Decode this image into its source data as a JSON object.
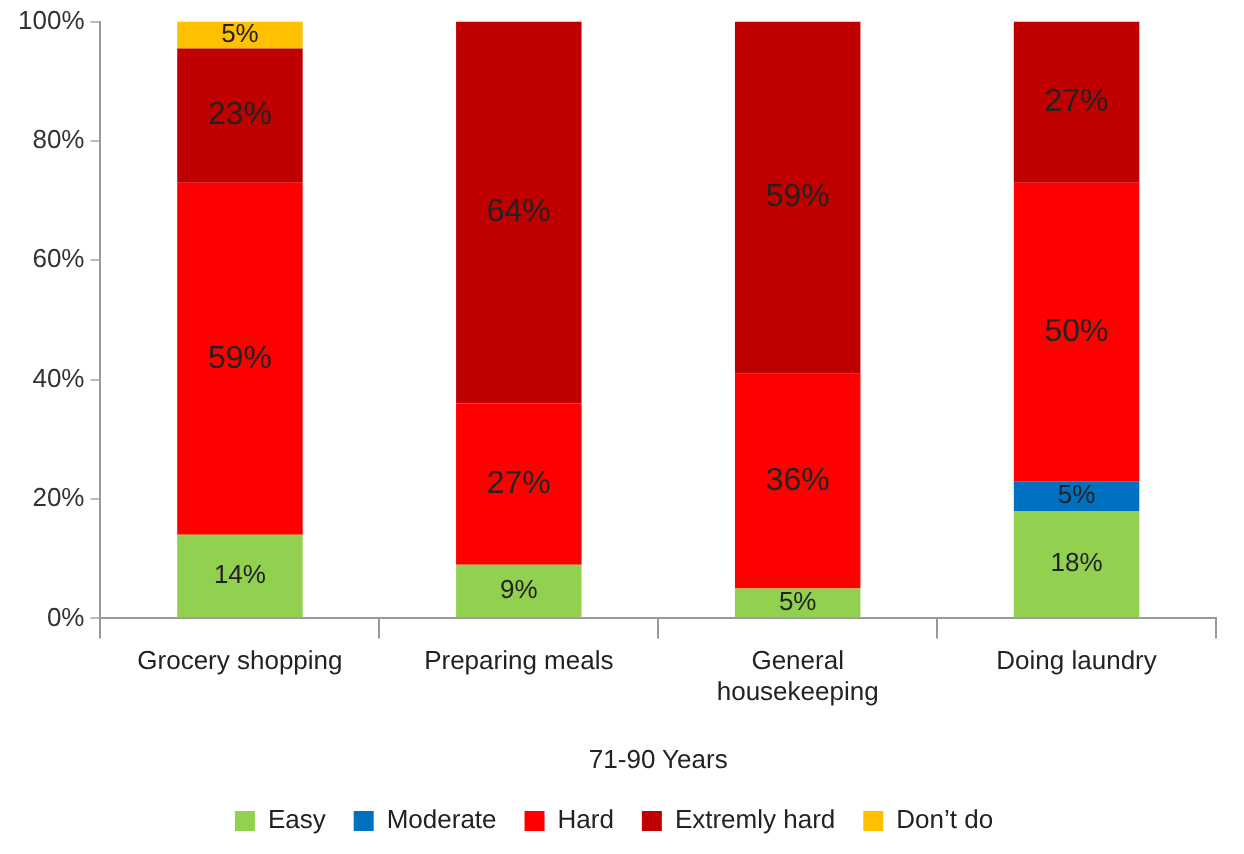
{
  "chart_data": {
    "type": "bar",
    "stacked": true,
    "xlabel": "71-90 Years",
    "categories": [
      "Grocery shopping",
      "Preparing meals",
      "General housekeeping",
      "Doing laundry"
    ],
    "series": [
      {
        "name": "Easy",
        "color": "#92d050",
        "values": [
          14,
          9,
          5,
          18
        ],
        "value_labels": [
          "14%",
          "9%",
          "5%",
          "18%"
        ]
      },
      {
        "name": "Moderate",
        "color": "#0070c0",
        "values": [
          null,
          null,
          null,
          5
        ],
        "value_labels": [
          null,
          null,
          null,
          "5%"
        ]
      },
      {
        "name": "Hard",
        "color": "#ff0000",
        "values": [
          59,
          27,
          36,
          50
        ],
        "value_labels": [
          "59%",
          "27%",
          "36%",
          "50%"
        ]
      },
      {
        "name": "Extremly hard",
        "color": "#c00000",
        "values": [
          22.5,
          64,
          59,
          27
        ],
        "value_labels": [
          "23%",
          "64%",
          "59%",
          "27%"
        ]
      },
      {
        "name": "Don’t do",
        "color": "#ffc000",
        "values": [
          4.5,
          null,
          null,
          null
        ],
        "value_labels": [
          "5%",
          null,
          null,
          null
        ]
      }
    ],
    "ylim": [
      0,
      100
    ],
    "yticks": [
      {
        "value": 0,
        "label": "0%"
      },
      {
        "value": 20,
        "label": "20%"
      },
      {
        "value": 40,
        "label": "40%"
      },
      {
        "value": 60,
        "label": "60%"
      },
      {
        "value": 80,
        "label": "80%"
      },
      {
        "value": 100,
        "label": "100%"
      }
    ],
    "grid": false,
    "legend": "bottom"
  }
}
